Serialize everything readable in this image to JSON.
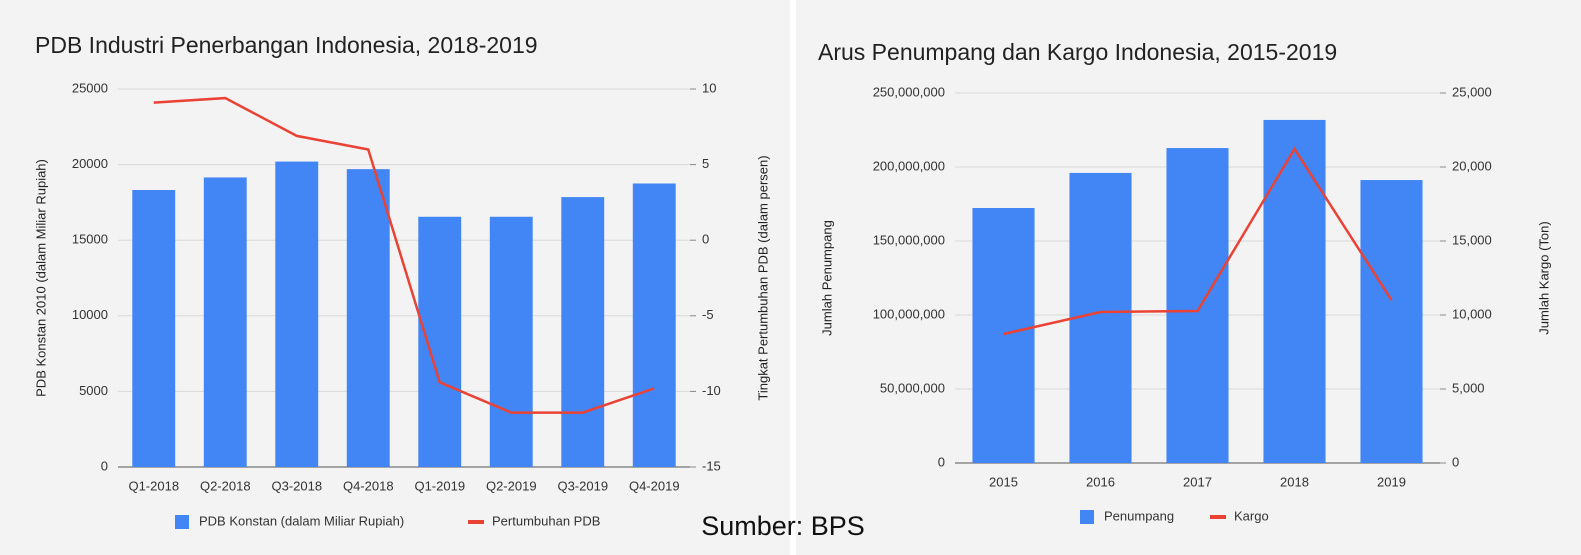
{
  "chart_data": [
    {
      "type": "bar-line",
      "title": "PDB Industri Penerbangan Indonesia, 2018-2019",
      "ylabel": "PDB Konstan 2010 (dalam Miliar Rupiah)",
      "y2label": "Tingkat Pertumbuhan PDB (dalam persen)",
      "categories": [
        "Q1-2018",
        "Q2-2018",
        "Q3-2018",
        "Q4-2018",
        "Q1-2019",
        "Q2-2019",
        "Q3-2019",
        "Q4-2019"
      ],
      "series": [
        {
          "name": "PDB Konstan (dalam Miliar Rupiah)",
          "color": "#4285f4",
          "kind": "bar",
          "values": [
            18320,
            19150,
            20200,
            19700,
            16550,
            16550,
            17850,
            18750
          ]
        },
        {
          "name": "Pertumbuhan PDB",
          "color": "#ea4335",
          "kind": "line",
          "axis": "y2",
          "values": [
            9.1,
            9.4,
            6.9,
            6.0,
            -9.4,
            -11.4,
            -11.4,
            -9.8
          ]
        }
      ],
      "ylim": [
        0,
        25000
      ],
      "yticks": [
        0,
        5000,
        10000,
        15000,
        20000,
        25000
      ],
      "y2lim": [
        -15,
        10
      ],
      "y2ticks": [
        -15,
        -10,
        -5,
        0,
        5,
        10
      ],
      "grid": true,
      "legend": "bottom"
    },
    {
      "type": "bar-line",
      "title": "Arus Penumpang dan Kargo Indonesia, 2015-2019",
      "ylabel": "Jumlah Penumpang",
      "y2label": "Jumlah Kargo (Ton)",
      "categories": [
        "2015",
        "2016",
        "2017",
        "2018",
        "2019"
      ],
      "series": [
        {
          "name": "Penumpang",
          "color": "#4285f4",
          "kind": "bar",
          "values": [
            172300000,
            196000000,
            212800000,
            231800000,
            191200000
          ]
        },
        {
          "name": "Kargo",
          "color": "#ea4335",
          "kind": "line",
          "axis": "y2",
          "values": [
            8716,
            10203,
            10270,
            21216,
            11013
          ]
        }
      ],
      "ylim": [
        0,
        250000000
      ],
      "yticks": [
        0,
        {
          "value": 50000000,
          "label": "50,000,000"
        },
        {
          "value": 100000000,
          "label": "100,000,000"
        },
        {
          "value": 150000000,
          "label": "150,000,000"
        },
        {
          "value": 200000000,
          "label": "200,000,000"
        },
        {
          "value": 250000000,
          "label": "250,000,000"
        }
      ],
      "y2lim": [
        0,
        25000
      ],
      "y2ticks": [
        0,
        {
          "value": 5000,
          "label": "5,000"
        },
        {
          "value": 10000,
          "label": "10,000"
        },
        {
          "value": 15000,
          "label": "15,000"
        },
        {
          "value": 20000,
          "label": "20,000"
        },
        {
          "value": 25000,
          "label": "25,000"
        }
      ],
      "grid": true,
      "legend": "bottom"
    }
  ],
  "source": "Sumber: BPS"
}
